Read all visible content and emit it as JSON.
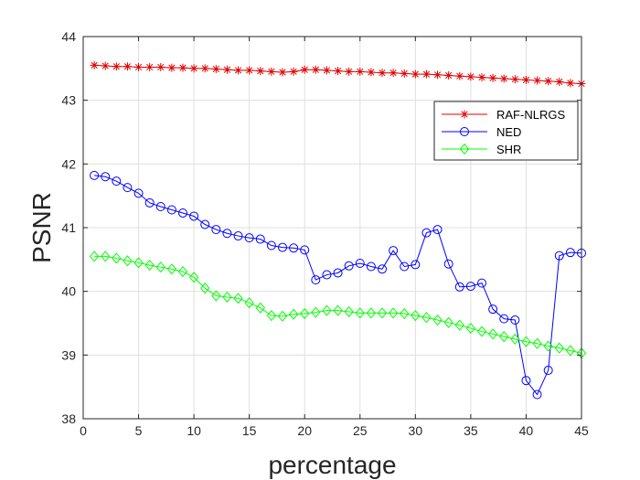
{
  "chart_data": {
    "type": "line",
    "title": "",
    "xlabel": "percentage",
    "ylabel": "PSNR",
    "xlim": [
      0,
      45
    ],
    "ylim": [
      38,
      44
    ],
    "xticks": [
      "0",
      "5",
      "10",
      "15",
      "20",
      "25",
      "30",
      "35",
      "40",
      "45"
    ],
    "yticks": [
      "38",
      "39",
      "40",
      "41",
      "42",
      "43",
      "44"
    ],
    "grid": true,
    "legend_position": "top-right",
    "x": [
      1,
      2,
      3,
      4,
      5,
      6,
      7,
      8,
      9,
      10,
      11,
      12,
      13,
      14,
      15,
      16,
      17,
      18,
      19,
      20,
      21,
      22,
      23,
      24,
      25,
      26,
      27,
      28,
      29,
      30,
      31,
      32,
      33,
      34,
      35,
      36,
      37,
      38,
      39,
      40,
      41,
      42,
      43,
      44,
      45
    ],
    "series": [
      {
        "name": "RAF-NLRGS",
        "color": "#e00000",
        "marker": "asterisk",
        "values": [
          43.55,
          43.54,
          43.53,
          43.53,
          43.52,
          43.52,
          43.52,
          43.51,
          43.51,
          43.5,
          43.5,
          43.49,
          43.48,
          43.47,
          43.47,
          43.46,
          43.45,
          43.44,
          43.45,
          43.48,
          43.48,
          43.47,
          43.46,
          43.45,
          43.45,
          43.44,
          43.43,
          43.43,
          43.42,
          43.41,
          43.41,
          43.4,
          43.39,
          43.38,
          43.37,
          43.36,
          43.35,
          43.34,
          43.33,
          43.32,
          43.31,
          43.3,
          43.29,
          43.27,
          43.26
        ]
      },
      {
        "name": "NED",
        "color": "#0000ff",
        "marker": "circle",
        "values": [
          41.82,
          41.8,
          41.73,
          41.63,
          41.54,
          41.39,
          41.33,
          41.28,
          41.23,
          41.18,
          41.05,
          40.97,
          40.91,
          40.87,
          40.84,
          40.82,
          40.72,
          40.69,
          40.68,
          40.65,
          40.18,
          40.26,
          40.29,
          40.4,
          40.44,
          40.39,
          40.35,
          40.64,
          40.39,
          40.42,
          40.92,
          40.97,
          40.43,
          40.07,
          40.08,
          40.13,
          39.72,
          39.57,
          39.55,
          38.6,
          38.38,
          38.76,
          40.56,
          40.61,
          40.6
        ]
      },
      {
        "name": "SHR",
        "color": "#00ff00",
        "marker": "diamond",
        "values": [
          40.55,
          40.55,
          40.52,
          40.48,
          40.45,
          40.41,
          40.38,
          40.35,
          40.31,
          40.22,
          40.05,
          39.93,
          39.91,
          39.89,
          39.82,
          39.74,
          39.62,
          39.61,
          39.64,
          39.65,
          39.67,
          39.7,
          39.7,
          39.68,
          39.66,
          39.66,
          39.66,
          39.66,
          39.65,
          39.62,
          39.59,
          39.55,
          39.51,
          39.47,
          39.42,
          39.37,
          39.33,
          39.29,
          39.25,
          39.21,
          39.18,
          39.14,
          39.11,
          39.07,
          39.03
        ]
      }
    ]
  }
}
